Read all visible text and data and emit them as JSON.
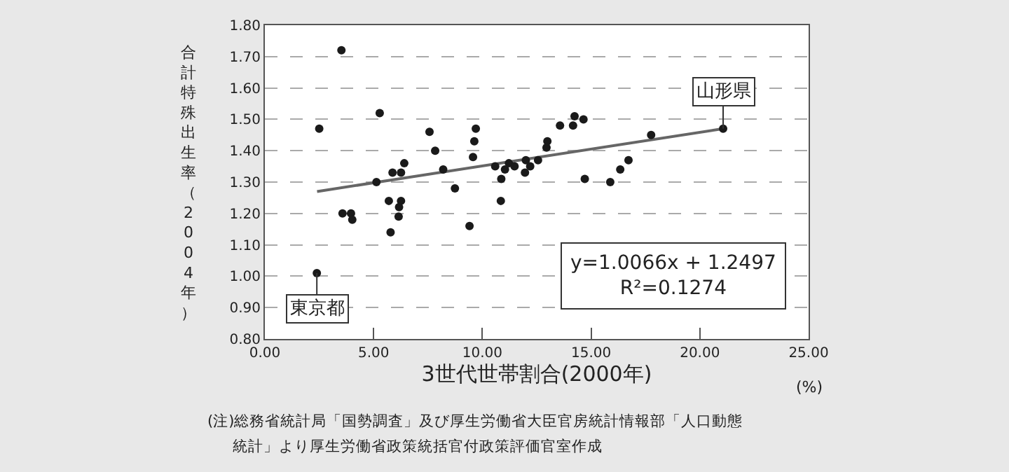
{
  "chart_data": {
    "type": "scatter",
    "xlabel": "3世代世帯割合(2000年)",
    "ylabel": "合計特殊出生率（2004年）",
    "x": [
      2.5,
      3.52,
      5.28,
      7.57,
      9.7,
      9.63,
      7.83,
      9.57,
      6.41,
      5.87,
      6.26,
      5.13,
      8.2,
      8.74,
      10.59,
      10.87,
      11.04,
      11.22,
      11.48,
      12.0,
      11.96,
      12.2,
      10.85,
      5.7,
      6.26,
      6.17,
      6.15,
      5.78,
      3.57,
      3.96,
      4.02,
      9.41,
      2.39,
      12.56,
      12.95,
      12.99,
      13.57,
      14.17,
      14.24,
      14.65,
      14.71,
      15.88,
      16.34,
      16.72,
      17.76,
      21.07
    ],
    "series": [
      {
        "color": "#1a1a1a",
        "marker": "circle",
        "values": [
          1.47,
          1.72,
          1.52,
          1.46,
          1.47,
          1.43,
          1.4,
          1.38,
          1.36,
          1.33,
          1.33,
          1.3,
          1.34,
          1.28,
          1.35,
          1.31,
          1.34,
          1.36,
          1.35,
          1.37,
          1.33,
          1.35,
          1.24,
          1.24,
          1.24,
          1.22,
          1.19,
          1.14,
          1.2,
          1.2,
          1.18,
          1.16,
          1.01,
          1.37,
          1.41,
          1.43,
          1.48,
          1.48,
          1.51,
          1.5,
          1.31,
          1.3,
          1.34,
          1.37,
          1.45,
          1.47
        ]
      },
      {
        "type": "line",
        "color": "#666666",
        "marker": "none",
        "line_style": "solid",
        "x": [
          2.4,
          21.07
        ],
        "values": [
          1.27,
          1.47
        ]
      }
    ],
    "xlim": [
      0,
      25
    ],
    "xticks": [
      {
        "value": 0,
        "label": "0.00"
      },
      {
        "value": 5,
        "label": "5.00"
      },
      {
        "value": 10,
        "label": "10.00"
      },
      {
        "value": 15,
        "label": "15.00"
      },
      {
        "value": 20,
        "label": "20.00"
      },
      {
        "value": 25,
        "label": "25.00"
      }
    ],
    "ylim": [
      0.8,
      1.8
    ],
    "yticks": [
      {
        "value": 0.8,
        "label": "0.80"
      },
      {
        "value": 0.9,
        "label": "0.90"
      },
      {
        "value": 1.0,
        "label": "1.00"
      },
      {
        "value": 1.1,
        "label": "1.10"
      },
      {
        "value": 1.2,
        "label": "1.20"
      },
      {
        "value": 1.3,
        "label": "1.30"
      },
      {
        "value": 1.4,
        "label": "1.40"
      },
      {
        "value": 1.5,
        "label": "1.50"
      },
      {
        "value": 1.6,
        "label": "1.60"
      },
      {
        "value": 1.7,
        "label": "1.70"
      },
      {
        "value": 1.8,
        "label": "1.80"
      }
    ],
    "grid": "y",
    "annotations": [
      {
        "text": "東京都",
        "x": 2.39,
        "y": 1.01
      },
      {
        "text": "山形県",
        "x": 21.07,
        "y": 1.47
      },
      "y=1.0066x + 1.2497\nR²=0.1274",
      "(%)",
      "(注)総務省統計局「国勢調査」及び厚生労働省大臣官房統計情報部「人口動態",
      "統計」より厚生労働省政策統括官付政策評価官室作成"
    ]
  }
}
